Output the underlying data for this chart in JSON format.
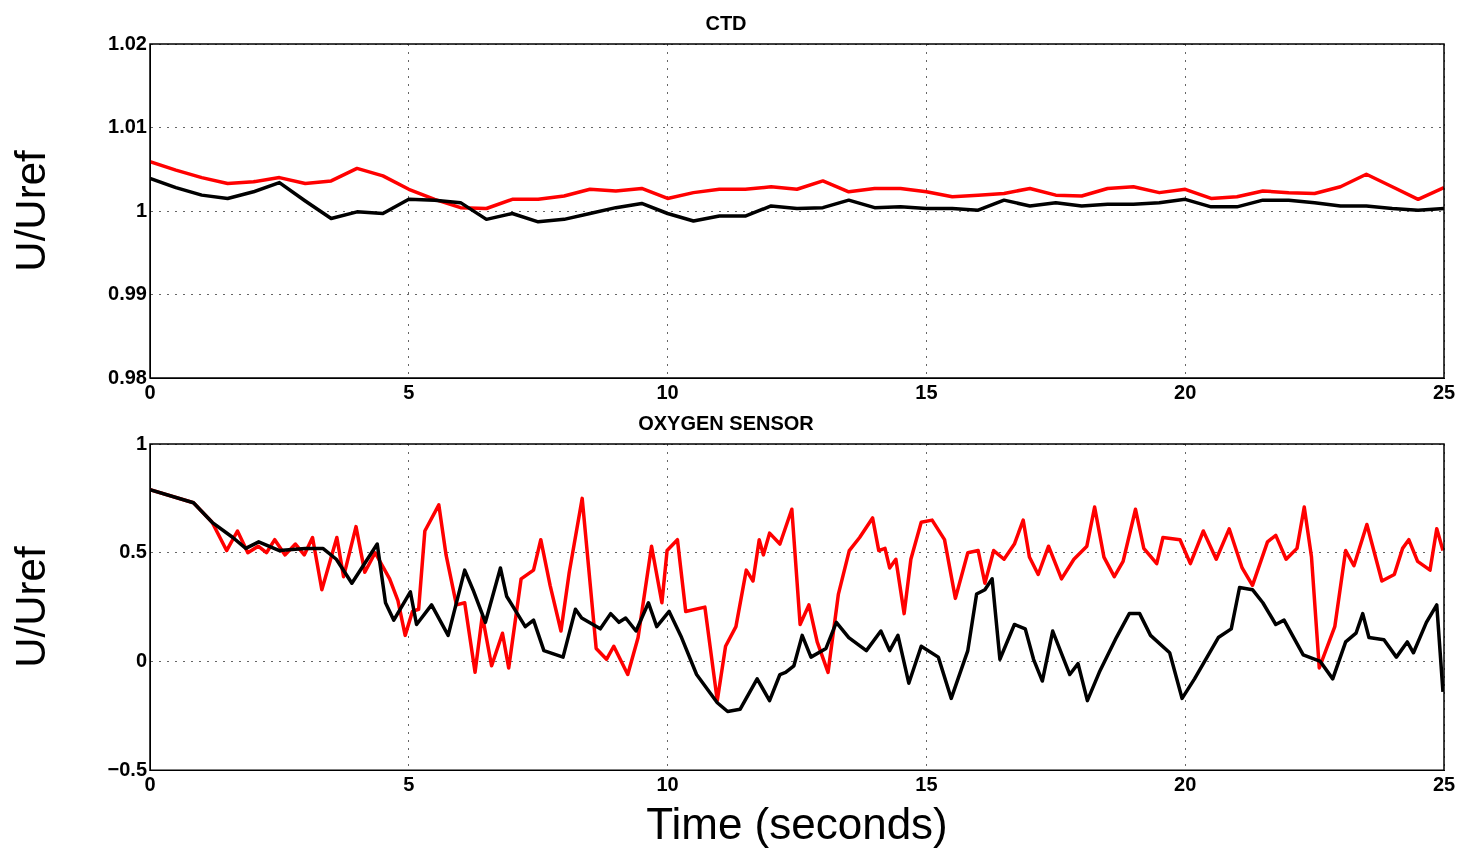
{
  "chart_data": [
    {
      "type": "line",
      "title": "CTD",
      "ylabel": "U/Uref",
      "x": [
        0,
        0.5,
        1,
        1.5,
        2,
        2.5,
        3,
        3.5,
        4,
        4.5,
        5,
        5.5,
        6,
        6.5,
        7,
        7.5,
        8,
        8.5,
        9,
        9.5,
        10,
        10.5,
        11,
        11.5,
        12,
        12.5,
        13,
        13.5,
        14,
        14.5,
        15,
        15.5,
        16,
        16.5,
        17,
        17.5,
        18,
        18.5,
        19,
        19.5,
        20,
        20.5,
        21,
        21.5,
        22,
        22.5,
        23,
        23.5,
        24,
        24.5,
        25
      ],
      "series": [
        {
          "color": "#000000",
          "values": [
            1.0039,
            1.0028,
            1.0019,
            1.0015,
            1.0023,
            1.0034,
            1.0012,
            0.9991,
            0.9999,
            0.9997,
            1.0014,
            1.0013,
            1.001,
            0.999,
            0.9997,
            0.9987,
            0.999,
            0.9997,
            1.0004,
            1.0009,
            0.9997,
            0.9988,
            0.9994,
            0.9994,
            1.0006,
            1.0003,
            1.0004,
            1.0013,
            1.0004,
            1.0005,
            1.0003,
            1.0003,
            1.0001,
            1.0013,
            1.0006,
            1.001,
            1.0006,
            1.0008,
            1.0008,
            1.001,
            1.0014,
            1.0005,
            1.0005,
            1.0013,
            1.0013,
            1.001,
            1.0006,
            1.0006,
            1.0003,
            1.0001,
            1.0003
          ]
        },
        {
          "color": "#ff0000",
          "values": [
            1.0059,
            1.0049,
            1.004,
            1.0033,
            1.0035,
            1.004,
            1.0033,
            1.0036,
            1.0051,
            1.0042,
            1.0026,
            1.0014,
            1.0004,
            1.0003,
            1.0014,
            1.0014,
            1.0018,
            1.0026,
            1.0024,
            1.0027,
            1.0015,
            1.0022,
            1.0026,
            1.0026,
            1.0029,
            1.0026,
            1.0036,
            1.0023,
            1.0027,
            1.0027,
            1.0023,
            1.0017,
            1.0019,
            1.0021,
            1.0027,
            1.0019,
            1.0018,
            1.0027,
            1.0029,
            1.0022,
            1.0026,
            1.0015,
            1.0017,
            1.0024,
            1.0022,
            1.0021,
            1.0029,
            1.0044,
            1.0029,
            1.0014,
            1.0028
          ]
        }
      ],
      "xlim": [
        0,
        25
      ],
      "xticks": [
        0,
        5,
        10,
        15,
        20,
        25
      ],
      "ylim": [
        0.98,
        1.02
      ],
      "yticks": [
        0.98,
        0.99,
        1,
        1.01,
        1.02
      ],
      "grid": true,
      "line_style": "solid"
    },
    {
      "type": "line",
      "title": "OXYGEN SENSOR",
      "xlabel": "Time (seconds)",
      "ylabel": "U/Uref",
      "series": [
        {
          "color": "#000000",
          "x": [
            0,
            0.84,
            1.2,
            1.6,
            1.85,
            2.1,
            2.5,
            3.0,
            3.34,
            3.6,
            3.9,
            4.39,
            4.55,
            4.71,
            5.03,
            5.15,
            5.44,
            5.76,
            6.08,
            6.24,
            6.48,
            6.77,
            6.89,
            7.25,
            7.41,
            7.61,
            7.98,
            8.22,
            8.34,
            8.7,
            8.9,
            9.06,
            9.19,
            9.39,
            9.63,
            9.79,
            10.03,
            10.27,
            10.56,
            10.96,
            11.16,
            11.4,
            11.73,
            11.97,
            12.17,
            12.28,
            12.44,
            12.6,
            12.77,
            13.06,
            13.26,
            13.5,
            13.84,
            14.12,
            14.29,
            14.45,
            14.66,
            14.9,
            15.23,
            15.48,
            15.8,
            15.97,
            16.13,
            16.27,
            16.42,
            16.7,
            16.91,
            17.07,
            17.24,
            17.44,
            17.77,
            17.93,
            18.11,
            18.34,
            18.67,
            18.92,
            19.12,
            19.33,
            19.7,
            19.94,
            20.18,
            20.64,
            20.89,
            21.05,
            21.3,
            21.5,
            21.75,
            21.91,
            22.28,
            22.61,
            22.85,
            23.1,
            23.3,
            23.43,
            23.55,
            23.84,
            24.08,
            24.29,
            24.41,
            24.66,
            24.86,
            24.98
          ],
          "values": [
            0.79,
            0.73,
            0.64,
            0.57,
            0.52,
            0.55,
            0.51,
            0.52,
            0.52,
            0.47,
            0.36,
            0.54,
            0.27,
            0.19,
            0.32,
            0.17,
            0.26,
            0.12,
            0.42,
            0.33,
            0.18,
            0.43,
            0.3,
            0.16,
            0.19,
            0.05,
            0.02,
            0.24,
            0.2,
            0.15,
            0.22,
            0.18,
            0.2,
            0.14,
            0.27,
            0.16,
            0.23,
            0.11,
            -0.06,
            -0.19,
            -0.23,
            -0.22,
            -0.08,
            -0.18,
            -0.06,
            -0.05,
            -0.02,
            0.12,
            0.02,
            0.06,
            0.18,
            0.11,
            0.05,
            0.14,
            0.05,
            0.12,
            -0.1,
            0.07,
            0.02,
            -0.17,
            0.05,
            0.31,
            0.33,
            0.38,
            0.01,
            0.17,
            0.15,
            0.01,
            -0.09,
            0.14,
            -0.06,
            -0.01,
            -0.18,
            -0.05,
            0.11,
            0.22,
            0.22,
            0.12,
            0.04,
            -0.17,
            -0.08,
            0.11,
            0.15,
            0.34,
            0.33,
            0.27,
            0.17,
            0.19,
            0.03,
            0,
            -0.08,
            0.09,
            0.13,
            0.22,
            0.11,
            0.1,
            0.02,
            0.09,
            0.04,
            0.18,
            0.26,
            -0.14
          ]
        },
        {
          "color": "#ff0000",
          "x": [
            0,
            0.84,
            1.2,
            1.48,
            1.69,
            1.89,
            2.09,
            2.25,
            2.41,
            2.61,
            2.81,
            2.98,
            3.14,
            3.32,
            3.61,
            3.74,
            3.98,
            4.15,
            4.35,
            4.63,
            4.79,
            4.93,
            5.07,
            5.19,
            5.31,
            5.58,
            5.72,
            5.92,
            6.08,
            6.28,
            6.42,
            6.6,
            6.81,
            6.93,
            7.17,
            7.41,
            7.55,
            7.73,
            7.94,
            8.1,
            8.35,
            8.62,
            8.82,
            8.96,
            9.23,
            9.43,
            9.69,
            9.89,
            9.99,
            10.19,
            10.35,
            10.72,
            10.96,
            11.12,
            11.32,
            11.52,
            11.65,
            11.77,
            11.85,
            11.97,
            12.17,
            12.4,
            12.56,
            12.73,
            12.89,
            13.1,
            13.3,
            13.51,
            13.71,
            13.96,
            14.08,
            14.2,
            14.29,
            14.41,
            14.57,
            14.7,
            14.9,
            15.11,
            15.35,
            15.56,
            15.8,
            16.0,
            16.13,
            16.3,
            16.5,
            16.7,
            16.87,
            16.99,
            17.16,
            17.36,
            17.61,
            17.85,
            18.1,
            18.25,
            18.43,
            18.63,
            18.8,
            19.04,
            19.2,
            19.45,
            19.57,
            19.9,
            20.1,
            20.35,
            20.6,
            20.85,
            21.1,
            21.3,
            21.59,
            21.75,
            21.95,
            22.16,
            22.3,
            22.44,
            22.59,
            22.89,
            23.1,
            23.26,
            23.51,
            23.8,
            24.04,
            24.2,
            24.32,
            24.49,
            24.73,
            24.86,
            24.98
          ],
          "values": [
            0.79,
            0.73,
            0.64,
            0.51,
            0.6,
            0.5,
            0.53,
            0.5,
            0.56,
            0.49,
            0.54,
            0.49,
            0.57,
            0.33,
            0.57,
            0.39,
            0.62,
            0.41,
            0.5,
            0.38,
            0.28,
            0.12,
            0.23,
            0.24,
            0.6,
            0.72,
            0.49,
            0.26,
            0.27,
            -0.05,
            0.21,
            -0.02,
            0.13,
            -0.03,
            0.38,
            0.42,
            0.56,
            0.35,
            0.14,
            0.41,
            0.75,
            0.06,
            0.01,
            0.07,
            -0.06,
            0.11,
            0.53,
            0.27,
            0.51,
            0.56,
            0.23,
            0.25,
            -0.18,
            0.07,
            0.16,
            0.42,
            0.37,
            0.56,
            0.49,
            0.59,
            0.54,
            0.7,
            0.17,
            0.26,
            0.09,
            -0.05,
            0.31,
            0.51,
            0.57,
            0.66,
            0.51,
            0.52,
            0.43,
            0.47,
            0.22,
            0.47,
            0.64,
            0.65,
            0.56,
            0.29,
            0.5,
            0.51,
            0.36,
            0.51,
            0.47,
            0.54,
            0.65,
            0.48,
            0.4,
            0.53,
            0.38,
            0.47,
            0.53,
            0.71,
            0.48,
            0.39,
            0.46,
            0.7,
            0.52,
            0.45,
            0.57,
            0.56,
            0.45,
            0.6,
            0.47,
            0.61,
            0.43,
            0.35,
            0.55,
            0.58,
            0.47,
            0.52,
            0.71,
            0.48,
            -0.03,
            0.16,
            0.51,
            0.44,
            0.63,
            0.37,
            0.4,
            0.52,
            0.56,
            0.46,
            0.42,
            0.61,
            0.51
          ]
        }
      ],
      "xlim": [
        0,
        25
      ],
      "xticks": [
        0,
        5,
        10,
        15,
        20,
        25
      ],
      "ylim": [
        -0.5,
        1
      ],
      "yticks": [
        {
          "value": -0.5,
          "label": "−0.5"
        },
        0,
        0.5,
        1
      ],
      "grid": true,
      "line_style": "solid"
    }
  ]
}
